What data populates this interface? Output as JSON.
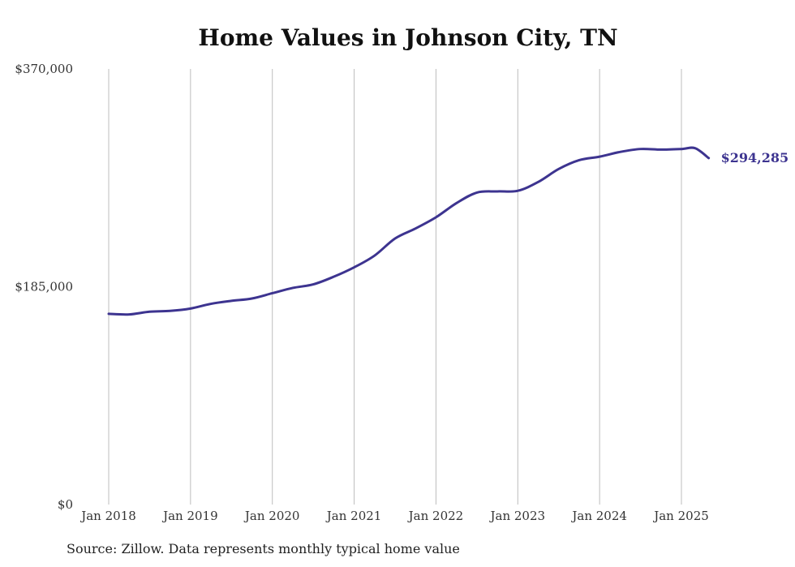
{
  "chart_data": {
    "type": "line",
    "title": "Home Values in Johnson City, TN",
    "xlabel": "",
    "ylabel": "",
    "ylim": [
      0,
      370000
    ],
    "y_ticks": [
      {
        "value": 0,
        "label": "$0"
      },
      {
        "value": 185000,
        "label": "$185,000"
      },
      {
        "value": 370000,
        "label": "$370,000"
      }
    ],
    "x_ticks": [
      {
        "value": "2018-01",
        "label": "Jan 2018"
      },
      {
        "value": "2019-01",
        "label": "Jan 2019"
      },
      {
        "value": "2020-01",
        "label": "Jan 2020"
      },
      {
        "value": "2021-01",
        "label": "Jan 2021"
      },
      {
        "value": "2022-01",
        "label": "Jan 2022"
      },
      {
        "value": "2023-01",
        "label": "Jan 2023"
      },
      {
        "value": "2024-01",
        "label": "Jan 2024"
      },
      {
        "value": "2025-01",
        "label": "Jan 2025"
      }
    ],
    "x_range": [
      "2018-01",
      "2025-05"
    ],
    "grid": "vertical",
    "line_color": "#3d3490",
    "end_label": "$294,285",
    "series": [
      {
        "values": [
          {
            "x": "2018-01",
            "y": 162000
          },
          {
            "x": "2018-04",
            "y": 161500
          },
          {
            "x": "2018-07",
            "y": 163800
          },
          {
            "x": "2018-10",
            "y": 164500
          },
          {
            "x": "2019-01",
            "y": 166500
          },
          {
            "x": "2019-04",
            "y": 170500
          },
          {
            "x": "2019-07",
            "y": 173000
          },
          {
            "x": "2019-10",
            "y": 175000
          },
          {
            "x": "2020-01",
            "y": 179500
          },
          {
            "x": "2020-04",
            "y": 184000
          },
          {
            "x": "2020-07",
            "y": 187000
          },
          {
            "x": "2020-10",
            "y": 193500
          },
          {
            "x": "2021-01",
            "y": 201500
          },
          {
            "x": "2021-04",
            "y": 211500
          },
          {
            "x": "2021-07",
            "y": 226000
          },
          {
            "x": "2021-10",
            "y": 234500
          },
          {
            "x": "2022-01",
            "y": 244000
          },
          {
            "x": "2022-04",
            "y": 256000
          },
          {
            "x": "2022-07",
            "y": 265000
          },
          {
            "x": "2022-10",
            "y": 266000
          },
          {
            "x": "2023-01",
            "y": 266500
          },
          {
            "x": "2023-04",
            "y": 274000
          },
          {
            "x": "2023-07",
            "y": 285000
          },
          {
            "x": "2023-10",
            "y": 292500
          },
          {
            "x": "2024-01",
            "y": 295500
          },
          {
            "x": "2024-04",
            "y": 299500
          },
          {
            "x": "2024-07",
            "y": 302000
          },
          {
            "x": "2024-10",
            "y": 301500
          },
          {
            "x": "2025-01",
            "y": 302000
          },
          {
            "x": "2025-03",
            "y": 302700
          },
          {
            "x": "2025-05",
            "y": 294285
          }
        ]
      }
    ]
  },
  "source_note": "Source: Zillow. Data represents monthly typical home value"
}
